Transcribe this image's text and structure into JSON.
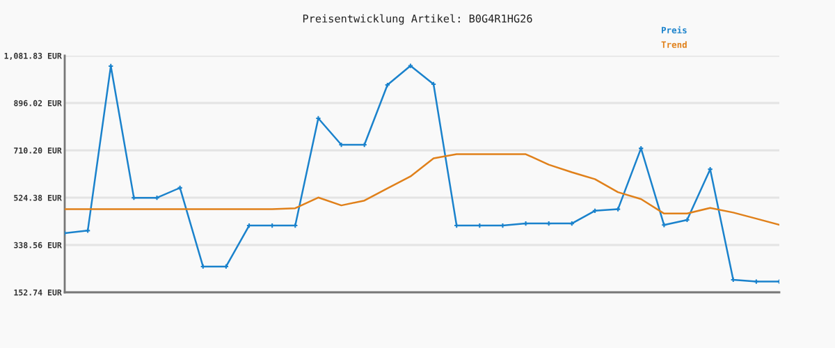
{
  "chart_data": {
    "type": "line",
    "title": "Preisentwicklung Artikel: B0G4R1HG26",
    "categories": [
      null,
      null,
      null,
      null,
      null,
      null,
      null,
      null,
      null,
      null,
      null,
      null,
      null,
      null,
      null,
      null,
      null,
      null,
      null,
      null,
      null,
      null,
      null,
      null,
      null,
      null,
      null,
      null,
      null,
      null,
      null,
      null
    ],
    "series": [
      {
        "name": "Preis",
        "color": "#1a82cc",
        "marker": "cross",
        "values": [
          385,
          395,
          1041,
          524,
          524,
          563,
          254,
          254,
          415,
          415,
          415,
          836,
          732,
          732,
          967,
          1042,
          970,
          415,
          415,
          415,
          423,
          423,
          423,
          473,
          479,
          718,
          417,
          437,
          636,
          202,
          195,
          195
        ]
      },
      {
        "name": "Trend",
        "color": "#e0801a",
        "marker": "none",
        "values": [
          479,
          479,
          479,
          479,
          479,
          479,
          479,
          479,
          479,
          479,
          483,
          525,
          494,
          513,
          561,
          608,
          679,
          695,
          695,
          695,
          695,
          654,
          624,
          597,
          546,
          519,
          462,
          462,
          484,
          466,
          442,
          418
        ]
      }
    ],
    "ylim": [
      152.74,
      1081.83
    ],
    "yticks": [
      {
        "value": 152.74,
        "label": "152.74 EUR"
      },
      {
        "value": 338.56,
        "label": "338.56 EUR"
      },
      {
        "value": 524.38,
        "label": "524.38 EUR"
      },
      {
        "value": 710.2,
        "label": "710.20 EUR"
      },
      {
        "value": 896.02,
        "label": "896.02 EUR"
      },
      {
        "value": 1081.83,
        "label": "1,081.83 EUR"
      }
    ],
    "grid": "y",
    "legend": "top right",
    "line_style": "solid"
  }
}
